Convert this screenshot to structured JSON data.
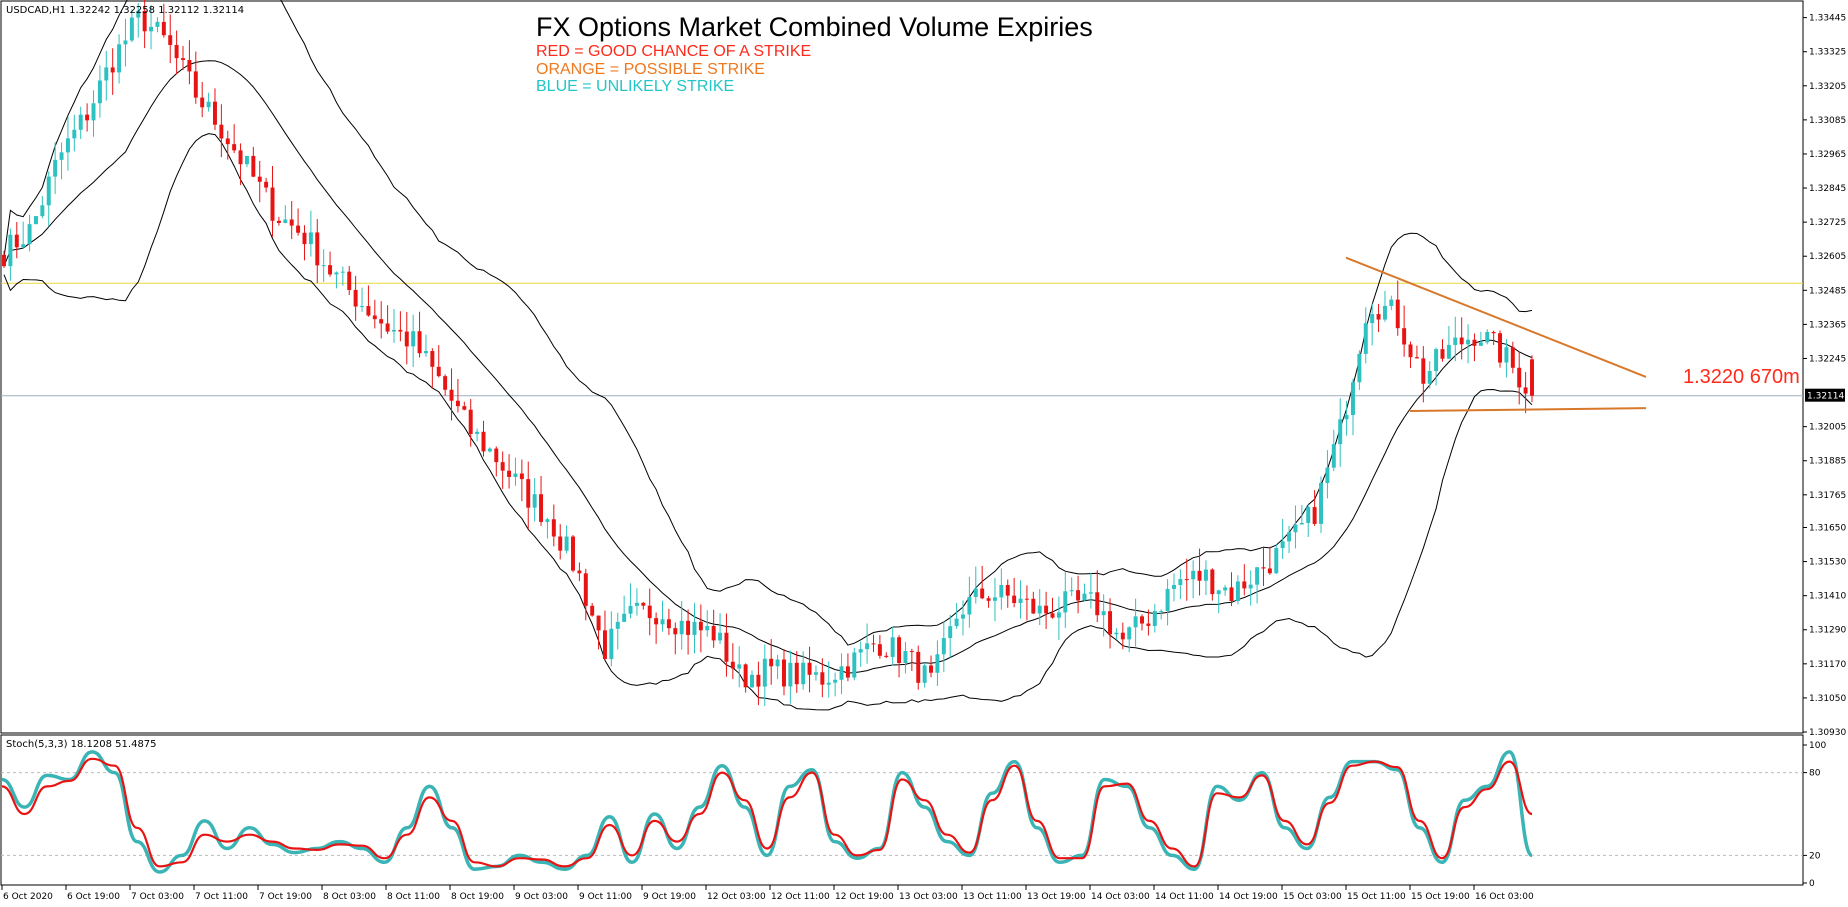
{
  "header": {
    "symbol_info": "USDCAD,H1  1.32242 1.32258 1.32112 1.32114",
    "title": "FX Options Market Combined Volume Expiries",
    "legend": [
      {
        "text": "RED = GOOD CHANCE OF A STRIKE",
        "color": "#ff2a1a"
      },
      {
        "text": "ORANGE = POSSIBLE STRIKE",
        "color": "#f0781e"
      },
      {
        "text": "BLUE = UNLIKELY STRIKE",
        "color": "#22c6c6"
      }
    ]
  },
  "annotation": {
    "text": "1.3220 670m",
    "color": "#ff2a1a"
  },
  "colors": {
    "bull": "#2ec1c1",
    "bear": "#e81414",
    "band": "#000000",
    "yellow_line": "#e8d93c",
    "price_line": "#9cb0bf",
    "orange_line": "#d8782a",
    "stoch_main": "#3ab4b4",
    "stoch_signal": "#e81414"
  },
  "chart_data": [
    {
      "type": "candlestick",
      "title": "USDCAD,H1",
      "ohlc_last": {
        "open": 1.32242,
        "high": 1.32258,
        "low": 1.32112,
        "close": 1.32114
      },
      "current_price_label": "1.32114",
      "yaxis": {
        "ticks": [
          "1.33445",
          "1.33325",
          "1.33205",
          "1.33085",
          "1.32965",
          "1.32845",
          "1.32725",
          "1.32605",
          "1.32485",
          "1.32365",
          "1.32245",
          "1.32114",
          "1.32005",
          "1.31885",
          "1.31765",
          "1.31650",
          "1.31530",
          "1.31410",
          "1.31290",
          "1.31170",
          "1.31050",
          "1.30930"
        ],
        "range": [
          1.3093,
          1.335
        ]
      },
      "xaxis": {
        "ticks": [
          "6 Oct 2020",
          "6 Oct 19:00",
          "7 Oct 03:00",
          "7 Oct 11:00",
          "7 Oct 19:00",
          "8 Oct 03:00",
          "8 Oct 11:00",
          "8 Oct 19:00",
          "9 Oct 03:00",
          "9 Oct 11:00",
          "9 Oct 19:00",
          "12 Oct 03:00",
          "12 Oct 11:00",
          "12 Oct 19:00",
          "13 Oct 03:00",
          "13 Oct 11:00",
          "13 Oct 19:00",
          "14 Oct 03:00",
          "14 Oct 11:00",
          "14 Oct 19:00",
          "15 Oct 03:00",
          "15 Oct 11:00",
          "15 Oct 19:00",
          "16 Oct 03:00"
        ]
      },
      "horizontal_lines": [
        {
          "price": 1.3251,
          "color": "yellow"
        },
        {
          "price": 1.32114,
          "color": "price"
        }
      ],
      "trend_lines": [
        {
          "from": {
            "x": "15 Oct 11:00",
            "y": 1.326
          },
          "to": {
            "x": "16 Oct 12:00",
            "y": 1.3218
          },
          "color": "orange"
        },
        {
          "from": {
            "x": "15 Oct 19:00",
            "y": 1.3206
          },
          "to": {
            "x": "16 Oct 12:00",
            "y": 1.3207
          },
          "color": "orange"
        }
      ],
      "path": [
        1.3262,
        1.327,
        1.3295,
        1.331,
        1.333,
        1.3345,
        1.3335,
        1.3318,
        1.3305,
        1.329,
        1.3275,
        1.3268,
        1.3255,
        1.3245,
        1.3236,
        1.323,
        1.3216,
        1.32,
        1.319,
        1.3178,
        1.3168,
        1.315,
        1.3122,
        1.3134,
        1.3136,
        1.313,
        1.3128,
        1.3112,
        1.3115,
        1.3113,
        1.3112,
        1.3117,
        1.3125,
        1.312,
        1.311,
        1.3136,
        1.3142,
        1.314,
        1.3135,
        1.3138,
        1.3138,
        1.3125,
        1.3134,
        1.3146,
        1.3148,
        1.3142,
        1.315,
        1.3158,
        1.317,
        1.32,
        1.3245,
        1.324,
        1.3218,
        1.3228,
        1.3234,
        1.3225,
        1.3212
      ],
      "indicators": [
        "Bollinger Bands (20,2)"
      ]
    },
    {
      "type": "line",
      "title": "Stoch(5,3,3) 18.1208 51.4875",
      "yaxis": {
        "ticks": [
          "100",
          "80",
          "20",
          "0"
        ],
        "range": [
          0,
          100
        ],
        "levels": [
          80,
          20
        ]
      },
      "series": [
        {
          "name": "main",
          "values": [
            75,
            55,
            78,
            75,
            95,
            80,
            30,
            8,
            20,
            45,
            25,
            40,
            28,
            22,
            25,
            30,
            25,
            15,
            40,
            70,
            40,
            10,
            12,
            20,
            15,
            10,
            20,
            48,
            15,
            50,
            25,
            55,
            85,
            55,
            20,
            70,
            82,
            30,
            18,
            25,
            80,
            55,
            30,
            20,
            65,
            88,
            40,
            15,
            20,
            75,
            70,
            40,
            20,
            10,
            70,
            60,
            80,
            40,
            25,
            62,
            88,
            88,
            82,
            40,
            15,
            60,
            70,
            95,
            20
          ]
        },
        {
          "name": "signal",
          "values": [
            70,
            50,
            70,
            74,
            90,
            85,
            40,
            12,
            15,
            35,
            30,
            35,
            30,
            25,
            24,
            28,
            27,
            18,
            35,
            62,
            45,
            15,
            12,
            18,
            17,
            12,
            18,
            42,
            20,
            45,
            30,
            50,
            80,
            60,
            25,
            62,
            80,
            35,
            20,
            24,
            75,
            60,
            35,
            22,
            60,
            85,
            45,
            18,
            18,
            70,
            72,
            45,
            25,
            12,
            65,
            62,
            78,
            45,
            28,
            58,
            85,
            88,
            84,
            45,
            18,
            55,
            68,
            88,
            50
          ]
        }
      ]
    }
  ]
}
